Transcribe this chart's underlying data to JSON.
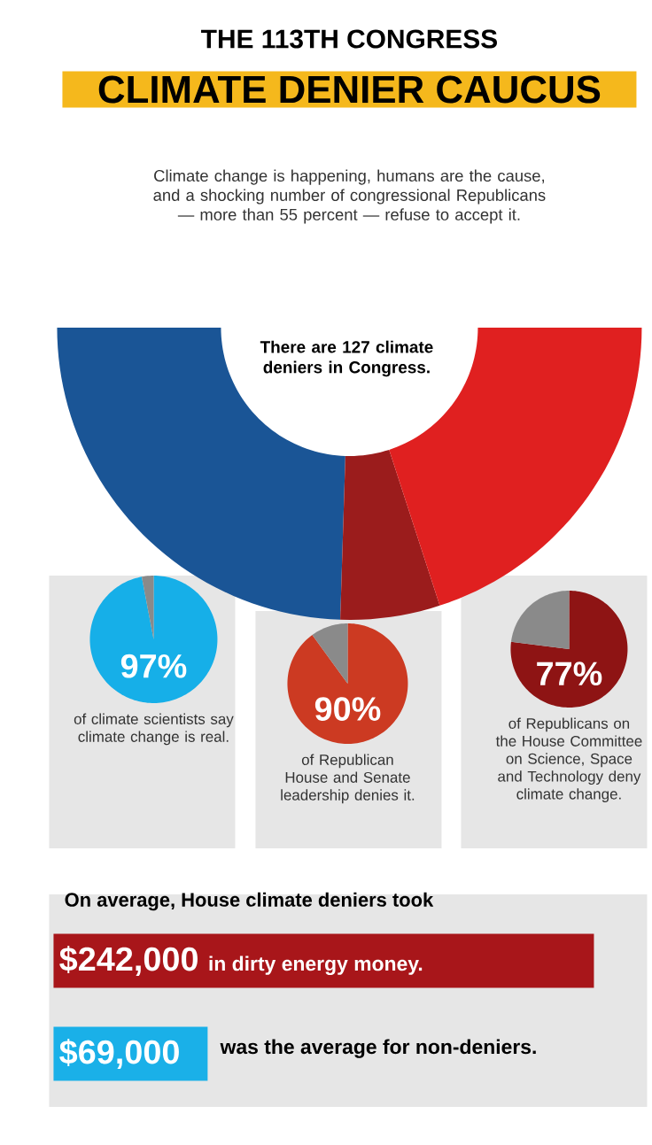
{
  "chart_data": [
    {
      "type": "donut",
      "title": "THE 113TH CONGRESS",
      "subtitle": "CLIMATE DENIER CAUCUS",
      "annotations": [
        "Climate change is happening, humans are the cause, and a shocking number of congressional Republicans — more than 55 percent — refuse to accept it.",
        "There are 127 climate deniers in Congress."
      ],
      "categories": [
        null,
        null,
        null
      ],
      "values": [
        49,
        11,
        40
      ],
      "colors": [
        "#1a5596",
        "#9b1c1c",
        "#e02020"
      ]
    },
    {
      "type": "pie",
      "categories": [
        null,
        null
      ],
      "values": [
        97,
        3
      ],
      "colors": [
        "#16afe8",
        "#8a8a8a"
      ],
      "value_labels": [
        "97%",
        null
      ],
      "annotations": [
        "of climate scientists say climate change is real."
      ]
    },
    {
      "type": "pie",
      "categories": [
        null,
        null
      ],
      "values": [
        90,
        10
      ],
      "colors": [
        "#cc3a22",
        "#8a8a8a"
      ],
      "value_labels": [
        "90%",
        null
      ],
      "annotations": [
        "of Republican House and Senate leadership denies it."
      ]
    },
    {
      "type": "pie",
      "categories": [
        null,
        null
      ],
      "values": [
        77,
        23
      ],
      "colors": [
        "#8e1414",
        "#8a8a8a"
      ],
      "value_labels": [
        "77%",
        null
      ],
      "annotations": [
        "of Republicans on the House Committee on Science, Space and Technology deny climate change."
      ]
    },
    {
      "type": "bar",
      "orientation": "horizontal",
      "title": "On average, House climate deniers took",
      "categories": [
        null,
        null
      ],
      "values": [
        242000,
        69000
      ],
      "colors": [
        "#a8161a",
        "#1ab0e8"
      ],
      "value_labels": [
        "$242,000",
        "$69,000"
      ],
      "annotations": [
        "in dirty energy money.",
        "was the average for non-deniers."
      ]
    }
  ]
}
